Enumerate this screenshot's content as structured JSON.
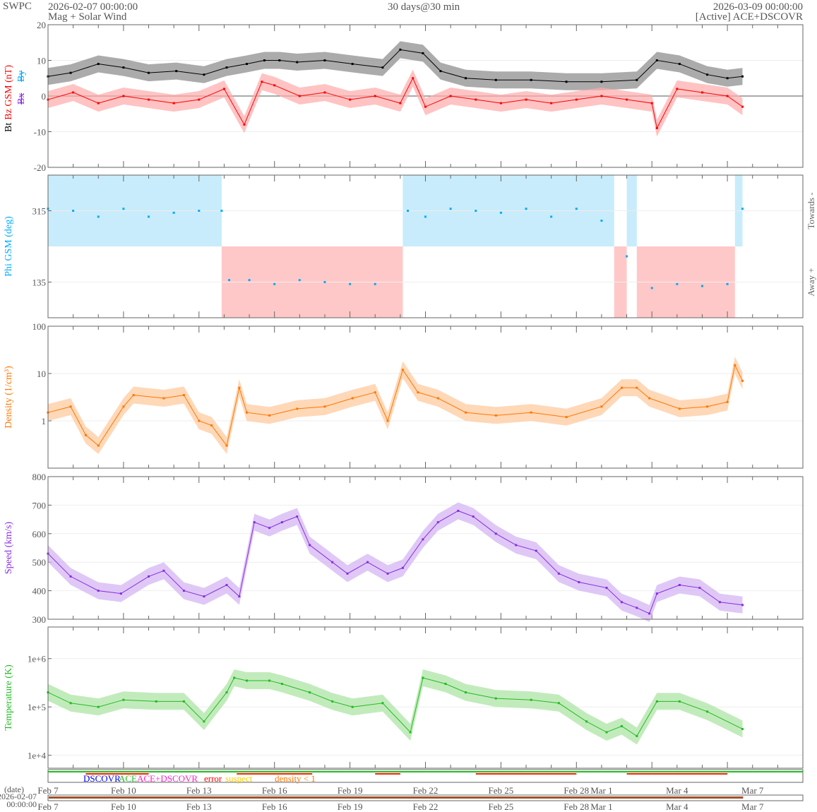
{
  "header": {
    "org": "SWPC",
    "start_time": "2026-02-07 00:00:00",
    "product": "Mag + Solar Wind",
    "span": "30 days@30 min",
    "end_time": "2026-03-09 00:00:00",
    "source": "[Active] ACE+DSCOVR"
  },
  "chart_data": [
    {
      "type": "line",
      "id": "mag",
      "ylabel_parts": [
        {
          "text": "Bt",
          "color": "#000000"
        },
        {
          "text": "Bz GSM (nT)",
          "color": "#ff0000"
        }
      ],
      "ylabel_extra": [
        {
          "text": "Bx",
          "color": "#8a2be2"
        },
        {
          "text": "By",
          "color": "#00aaff"
        }
      ],
      "scale": "linear",
      "ylim": [
        -20,
        20
      ],
      "yticks": [
        -20,
        -10,
        0,
        10,
        20
      ],
      "zero_line": true,
      "series": [
        {
          "name": "Bt",
          "color": "#000000",
          "band": "#888888",
          "points": [
            [
              0,
              5.5
            ],
            [
              0.9,
              6.5
            ],
            [
              2,
              9
            ],
            [
              3,
              8
            ],
            [
              4,
              6.5
            ],
            [
              5.1,
              7
            ],
            [
              6.2,
              6
            ],
            [
              7.1,
              8
            ],
            [
              7.9,
              9
            ],
            [
              8.6,
              10
            ],
            [
              9.2,
              10
            ],
            [
              9.9,
              9.5
            ],
            [
              11,
              10
            ],
            [
              12.1,
              9
            ],
            [
              13.3,
              8
            ],
            [
              14,
              13
            ],
            [
              14.9,
              12
            ],
            [
              15.6,
              7
            ],
            [
              16.6,
              5
            ],
            [
              17.8,
              4.5
            ],
            [
              19.2,
              4.5
            ],
            [
              20.6,
              4
            ],
            [
              22,
              4
            ],
            [
              23.4,
              4.5
            ],
            [
              24.2,
              10
            ],
            [
              25.1,
              9
            ],
            [
              26.2,
              6
            ],
            [
              27,
              5
            ],
            [
              27.6,
              5.5
            ]
          ]
        },
        {
          "name": "Bz GSM",
          "color": "#ff0000",
          "band": "#ffaaaa",
          "points": [
            [
              0,
              -1
            ],
            [
              1,
              1
            ],
            [
              2,
              -2
            ],
            [
              3,
              0
            ],
            [
              4,
              -1
            ],
            [
              5,
              -2
            ],
            [
              6,
              -1
            ],
            [
              7,
              2
            ],
            [
              7.8,
              -8
            ],
            [
              8.5,
              4
            ],
            [
              9,
              3
            ],
            [
              10,
              0
            ],
            [
              11,
              1
            ],
            [
              12,
              -1
            ],
            [
              13,
              0
            ],
            [
              14,
              -2
            ],
            [
              14.5,
              5
            ],
            [
              15,
              -3
            ],
            [
              16,
              0
            ],
            [
              17,
              -1
            ],
            [
              18,
              -2
            ],
            [
              19,
              -1
            ],
            [
              20,
              -2
            ],
            [
              21,
              -1
            ],
            [
              22,
              0
            ],
            [
              23,
              -1
            ],
            [
              24,
              -2
            ],
            [
              24.2,
              -9
            ],
            [
              25,
              2
            ],
            [
              26,
              1
            ],
            [
              27,
              0
            ],
            [
              27.6,
              -3
            ]
          ]
        }
      ]
    },
    {
      "type": "scatter",
      "id": "phi",
      "ylabel": "Phi GSM (deg)",
      "ylabel_color": "#00aaff",
      "scale": "linear",
      "ylim": [
        45,
        405
      ],
      "yticks": [
        135,
        315
      ],
      "right_labels": [
        "Towards -",
        "Away +"
      ],
      "sectors": [
        {
          "start": 0,
          "end": 6.9,
          "sector": "towards"
        },
        {
          "start": 6.9,
          "end": 14.1,
          "sector": "away"
        },
        {
          "start": 14.1,
          "end": 22.5,
          "sector": "towards"
        },
        {
          "start": 22.5,
          "end": 23.0,
          "sector": "away"
        },
        {
          "start": 23.0,
          "end": 23.4,
          "sector": "towards"
        },
        {
          "start": 23.4,
          "end": 27.3,
          "sector": "away"
        },
        {
          "start": 27.3,
          "end": 27.6,
          "sector": "towards"
        }
      ],
      "sector_colors": {
        "towards": "#c8ecfb",
        "away": "#ffc8c8"
      },
      "series": [
        {
          "name": "Phi",
          "color": "#00aaff",
          "points": [
            [
              0,
              320
            ],
            [
              1,
              315
            ],
            [
              2,
              300
            ],
            [
              3,
              320
            ],
            [
              4,
              300
            ],
            [
              5,
              310
            ],
            [
              6,
              315
            ],
            [
              6.9,
              315
            ],
            [
              7.2,
              140
            ],
            [
              8,
              140
            ],
            [
              9,
              130
            ],
            [
              10,
              140
            ],
            [
              11,
              135
            ],
            [
              12,
              130
            ],
            [
              13,
              130
            ],
            [
              14.3,
              315
            ],
            [
              15,
              300
            ],
            [
              16,
              320
            ],
            [
              17,
              315
            ],
            [
              18,
              310
            ],
            [
              19,
              320
            ],
            [
              20,
              300
            ],
            [
              21,
              320
            ],
            [
              22,
              290
            ],
            [
              23,
              200
            ],
            [
              24,
              120
            ],
            [
              25,
              130
            ],
            [
              26,
              125
            ],
            [
              27,
              130
            ],
            [
              27.6,
              320
            ]
          ]
        }
      ]
    },
    {
      "type": "line",
      "id": "density",
      "ylabel": "Density (1/cm³)",
      "ylabel_color": "#ff7700",
      "scale": "log",
      "ylim": [
        0.1,
        100
      ],
      "yticks": [
        1,
        10,
        100
      ],
      "series": [
        {
          "name": "Density",
          "color": "#ff7700",
          "band": "#ffc89a",
          "points": [
            [
              0,
              1.5
            ],
            [
              0.9,
              2
            ],
            [
              1.5,
              0.5
            ],
            [
              2,
              0.3
            ],
            [
              3,
              2
            ],
            [
              3.4,
              3.5
            ],
            [
              4.6,
              3
            ],
            [
              5.4,
              3.5
            ],
            [
              6,
              1
            ],
            [
              6.5,
              0.8
            ],
            [
              7.1,
              0.3
            ],
            [
              7.6,
              5
            ],
            [
              7.9,
              1.5
            ],
            [
              8.8,
              1.3
            ],
            [
              9.9,
              1.8
            ],
            [
              11,
              2
            ],
            [
              12.1,
              3
            ],
            [
              13,
              4
            ],
            [
              13.5,
              1
            ],
            [
              14.1,
              12
            ],
            [
              14.7,
              4
            ],
            [
              15.5,
              3
            ],
            [
              16.6,
              1.5
            ],
            [
              17.8,
              1.3
            ],
            [
              19.2,
              1.5
            ],
            [
              20.6,
              1.2
            ],
            [
              22,
              2
            ],
            [
              22.8,
              5
            ],
            [
              23.4,
              5
            ],
            [
              23.9,
              3
            ],
            [
              25.1,
              1.8
            ],
            [
              26.2,
              2
            ],
            [
              27,
              2.5
            ],
            [
              27.3,
              15
            ],
            [
              27.6,
              7
            ]
          ]
        }
      ]
    },
    {
      "type": "line",
      "id": "speed",
      "ylabel": "Speed (km/s)",
      "ylabel_color": "#8a2be2",
      "scale": "linear",
      "ylim": [
        300,
        800
      ],
      "yticks": [
        300,
        400,
        500,
        600,
        700,
        800
      ],
      "series": [
        {
          "name": "Speed",
          "color": "#8a2be2",
          "band": "#d2b0f2",
          "points": [
            [
              0,
              530
            ],
            [
              0.9,
              450
            ],
            [
              2,
              400
            ],
            [
              2.9,
              390
            ],
            [
              4,
              450
            ],
            [
              4.6,
              470
            ],
            [
              5.4,
              400
            ],
            [
              6.2,
              380
            ],
            [
              7.1,
              420
            ],
            [
              7.6,
              380
            ],
            [
              8.2,
              640
            ],
            [
              8.8,
              620
            ],
            [
              9.3,
              640
            ],
            [
              9.9,
              660
            ],
            [
              10.4,
              560
            ],
            [
              11.3,
              500
            ],
            [
              11.9,
              460
            ],
            [
              12.7,
              500
            ],
            [
              13.5,
              460
            ],
            [
              14.1,
              480
            ],
            [
              14.9,
              580
            ],
            [
              15.5,
              640
            ],
            [
              16.3,
              680
            ],
            [
              16.9,
              660
            ],
            [
              17.8,
              600
            ],
            [
              18.6,
              560
            ],
            [
              19.4,
              540
            ],
            [
              20.3,
              460
            ],
            [
              21.1,
              430
            ],
            [
              22.2,
              410
            ],
            [
              22.8,
              360
            ],
            [
              23.4,
              340
            ],
            [
              23.9,
              320
            ],
            [
              24.2,
              390
            ],
            [
              25.1,
              420
            ],
            [
              25.9,
              410
            ],
            [
              26.7,
              360
            ],
            [
              27.6,
              350
            ]
          ]
        }
      ]
    },
    {
      "type": "line",
      "id": "temperature",
      "ylabel": "Temperature (K)",
      "ylabel_color": "#22bb22",
      "scale": "log",
      "ylim": [
        5400,
        4500000
      ],
      "yticks": [
        10000,
        100000,
        1000000
      ],
      "ytick_labels": [
        "1e+4",
        "1e+5",
        "1e+6"
      ],
      "series": [
        {
          "name": "Temperature",
          "color": "#22bb22",
          "band": "#a8e2a0",
          "points": [
            [
              0,
              200000
            ],
            [
              0.9,
              120000
            ],
            [
              2,
              100000
            ],
            [
              3,
              140000
            ],
            [
              4.3,
              130000
            ],
            [
              5.4,
              130000
            ],
            [
              6.2,
              50000
            ],
            [
              7.1,
              200000
            ],
            [
              7.4,
              400000
            ],
            [
              7.9,
              350000
            ],
            [
              8.8,
              350000
            ],
            [
              9.3,
              300000
            ],
            [
              10.4,
              200000
            ],
            [
              11.3,
              130000
            ],
            [
              12.1,
              100000
            ],
            [
              13.3,
              120000
            ],
            [
              14.4,
              30000
            ],
            [
              14.9,
              400000
            ],
            [
              15.8,
              300000
            ],
            [
              16.6,
              200000
            ],
            [
              17.8,
              150000
            ],
            [
              19.2,
              140000
            ],
            [
              20.3,
              120000
            ],
            [
              21.4,
              50000
            ],
            [
              22.2,
              30000
            ],
            [
              22.8,
              40000
            ],
            [
              23.4,
              25000
            ],
            [
              24.2,
              130000
            ],
            [
              25.1,
              130000
            ],
            [
              26.2,
              80000
            ],
            [
              27.6,
              35000
            ]
          ]
        }
      ]
    }
  ],
  "x_axis": {
    "days_span": 30,
    "ticks": [
      {
        "day": 0,
        "label": "Feb 7"
      },
      {
        "day": 3,
        "label": "Feb 10"
      },
      {
        "day": 6,
        "label": "Feb 13"
      },
      {
        "day": 9,
        "label": "Feb 16"
      },
      {
        "day": 12,
        "label": "Feb 19"
      },
      {
        "day": 15,
        "label": "Feb 22"
      },
      {
        "day": 18,
        "label": "Feb 25"
      },
      {
        "day": 21,
        "label": "Feb 28"
      },
      {
        "day": 22,
        "label": "Mar 1"
      },
      {
        "day": 25,
        "label": "Mar 4"
      },
      {
        "day": 28,
        "label": "Mar 7"
      }
    ]
  },
  "status_legend": [
    {
      "text": "DSCOVR",
      "color": "#0000ff"
    },
    {
      "text": "ACE",
      "color": "#22bb22"
    },
    {
      "text": "ACE+DSCOVR",
      "color": "#ff22cc"
    },
    {
      "text": "error",
      "color": "#ff0000"
    },
    {
      "text": "suspect",
      "color": "#ffcc00"
    },
    {
      "text": "density < 1",
      "color": "#ff7700"
    }
  ],
  "date_axis": {
    "label": "(date)",
    "date": "2026-02-07",
    "time": "00:00:00"
  }
}
